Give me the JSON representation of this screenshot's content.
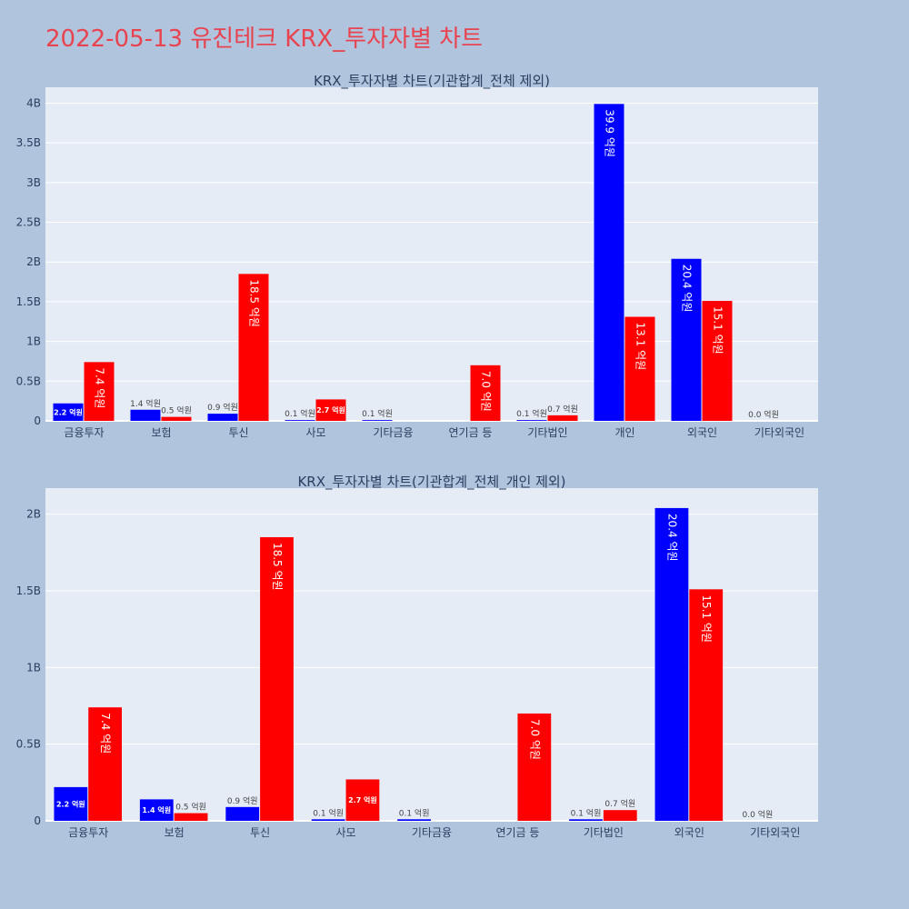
{
  "title": "2022-05-13 유진테크 KRX_투자자별 차트",
  "colors": {
    "series_a": "#0000ff",
    "series_b": "#ff0000",
    "plot_bg": "#e5ecf6",
    "page_bg": "#b0c4de",
    "title": "#e8434f"
  },
  "chart_data": [
    {
      "type": "bar",
      "title": "KRX_투자자별 차트(기관합계_전체 제외)",
      "categories": [
        "금융투자",
        "보험",
        "투신",
        "사모",
        "기타금융",
        "연기금 등",
        "기타법인",
        "개인",
        "외국인",
        "기타외국인"
      ],
      "series": [
        {
          "values": [
            0.22,
            0.14,
            0.09,
            0.01,
            0.01,
            null,
            0.01,
            3.99,
            2.04,
            0.0
          ],
          "labels": [
            "2.2 억원",
            "1.4 억원",
            "0.9 억원",
            "0.1 억원",
            "0.1 억원",
            "",
            "0.1 억원",
            "39.9 억원",
            "20.4 억원",
            "0.0 억원"
          ]
        },
        {
          "values": [
            0.74,
            0.05,
            1.85,
            0.27,
            null,
            0.7,
            0.07,
            1.31,
            1.51,
            null
          ],
          "labels": [
            "7.4 억원",
            "0.5 억원",
            "18.5 억원",
            "2.7 억원",
            "",
            "7.0 억원",
            "0.7 억원",
            "13.1 억원",
            "15.1 억원",
            ""
          ]
        }
      ],
      "ylim": [
        0,
        4.2
      ],
      "yticks": [
        0,
        0.5,
        1,
        1.5,
        2,
        2.5,
        3,
        3.5,
        4
      ],
      "ytick_labels": [
        "0",
        "0.5B",
        "1B",
        "1.5B",
        "2B",
        "2.5B",
        "3B",
        "3.5B",
        "4B"
      ],
      "grid": true
    },
    {
      "type": "bar",
      "title": "KRX_투자자별 차트(기관합계_전체_개인 제외)",
      "categories": [
        "금융투자",
        "보험",
        "투신",
        "사모",
        "기타금융",
        "연기금 등",
        "기타법인",
        "외국인",
        "기타외국인"
      ],
      "series": [
        {
          "values": [
            0.22,
            0.14,
            0.09,
            0.01,
            0.01,
            null,
            0.01,
            2.04,
            0.0
          ],
          "labels": [
            "2.2 억원",
            "1.4 억원",
            "0.9 억원",
            "0.1 억원",
            "0.1 억원",
            "",
            "0.1 억원",
            "20.4 억원",
            "0.0 억원"
          ]
        },
        {
          "values": [
            0.74,
            0.05,
            1.85,
            0.27,
            null,
            0.7,
            0.07,
            1.51,
            null
          ],
          "labels": [
            "7.4 억원",
            "0.5 억원",
            "18.5 억원",
            "2.7 억원",
            "",
            "7.0 억원",
            "0.7 억원",
            "15.1 억원",
            ""
          ]
        }
      ],
      "ylim": [
        0,
        2.17
      ],
      "yticks": [
        0,
        0.5,
        1,
        1.5,
        2
      ],
      "ytick_labels": [
        "0",
        "0.5B",
        "1B",
        "1.5B",
        "2B"
      ],
      "grid": true
    }
  ]
}
